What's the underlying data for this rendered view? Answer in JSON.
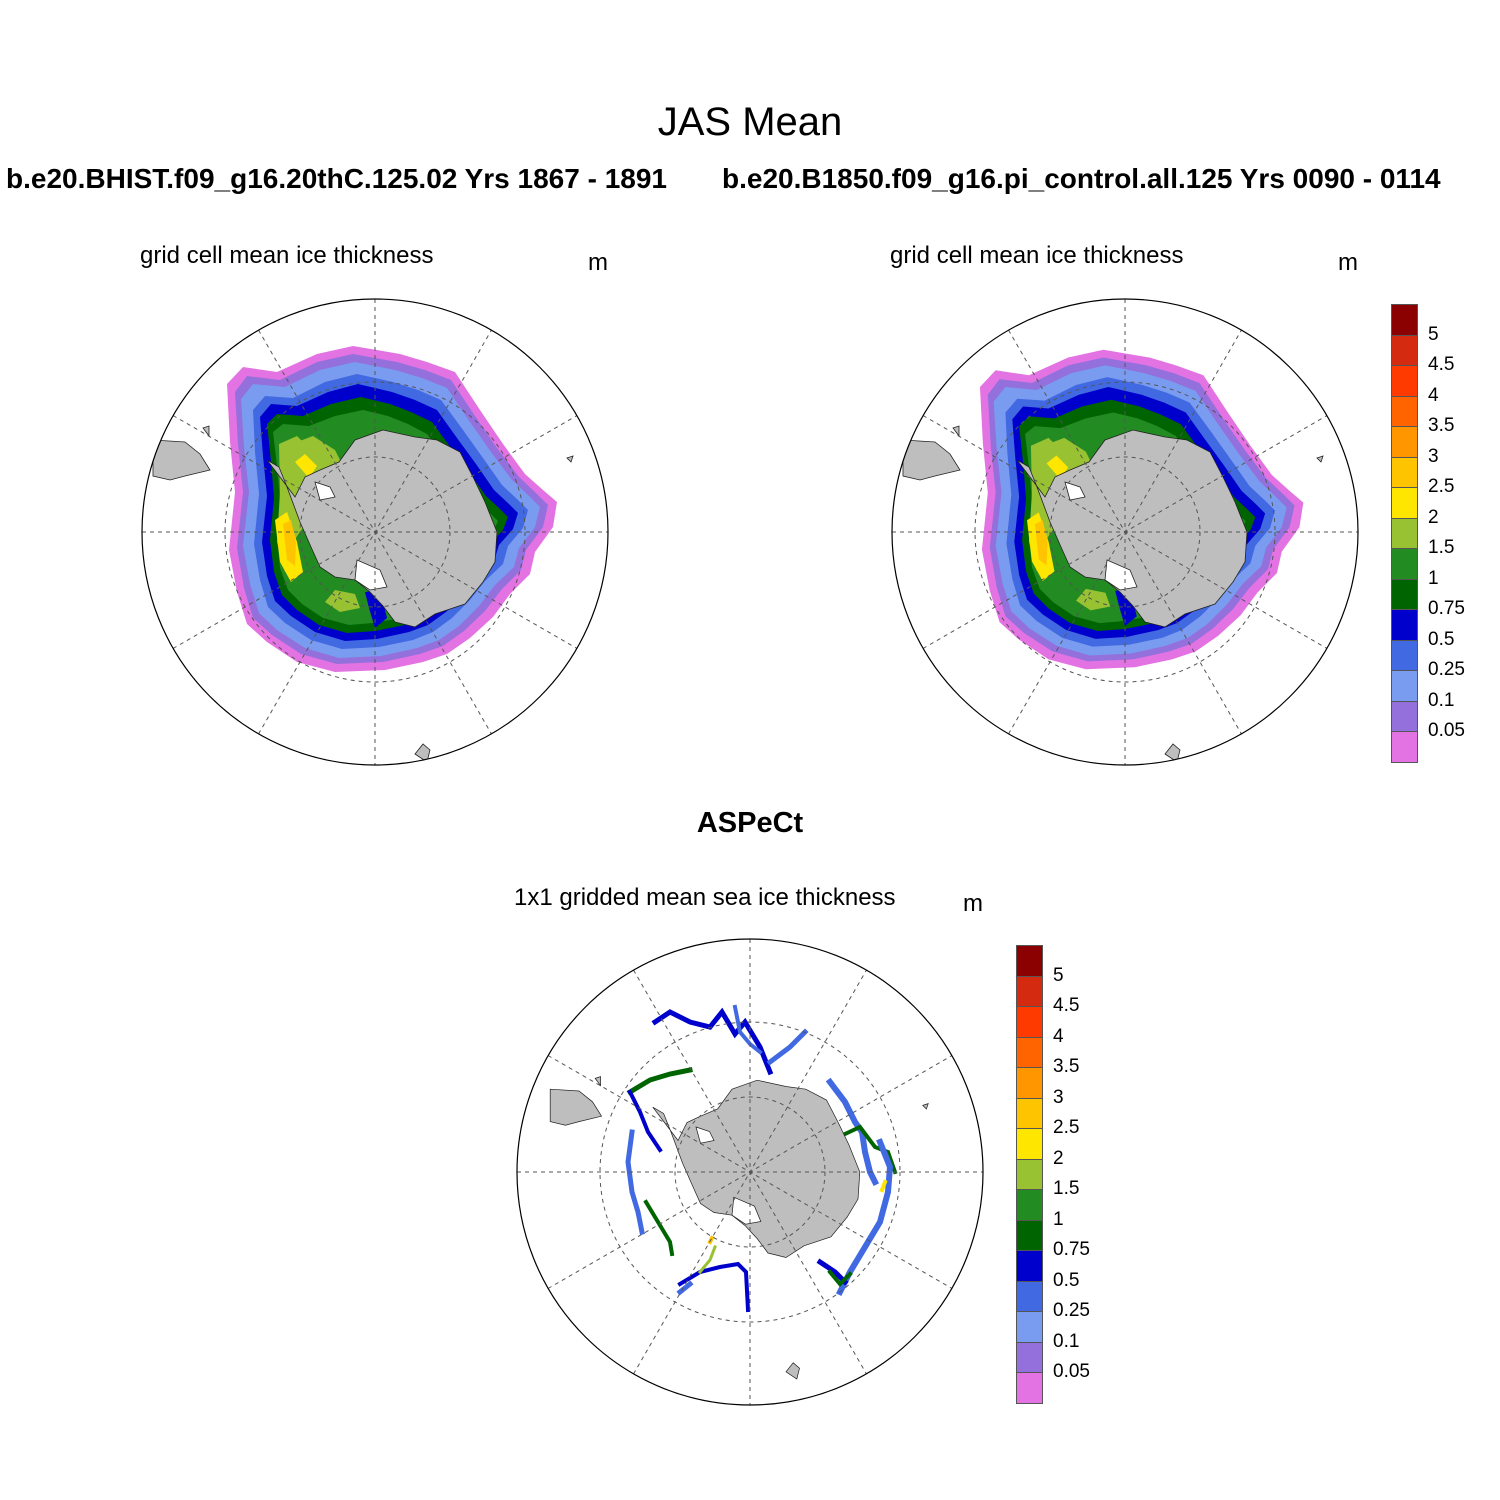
{
  "figure": {
    "title": "JAS Mean",
    "panel_left": {
      "case": "b.e20.BHIST.f09_g16.20thC.125.02  Yrs 1867 - 1891",
      "subtitle": "grid cell mean ice thickness",
      "units": "m"
    },
    "panel_right": {
      "case": "b.e20.B1850.f09_g16.pi_control.all.125  Yrs 0090 - 0114",
      "subtitle": "grid cell mean ice thickness",
      "units": "m"
    },
    "panel_obs": {
      "title": "ASPeCt",
      "subtitle": "1x1 gridded mean sea ice thickness",
      "units": "m"
    }
  },
  "colorbar": {
    "labels": [
      "5",
      "4.5",
      "4",
      "3.5",
      "3",
      "2.5",
      "2",
      "1.5",
      "1",
      "0.75",
      "0.5",
      "0.25",
      "0.1",
      "0.05"
    ],
    "colors": [
      "#8B0000",
      "#D42A10",
      "#FF3A00",
      "#FF6400",
      "#FF9600",
      "#FFC400",
      "#FFE600",
      "#98C232",
      "#228B22",
      "#006400",
      "#0000CD",
      "#4169E1",
      "#7A9CF0",
      "#9370DB",
      "#E373E3"
    ]
  },
  "colors": {
    "land": "#BEBEBE",
    "frame": "#000000",
    "grid": "#555555"
  }
}
